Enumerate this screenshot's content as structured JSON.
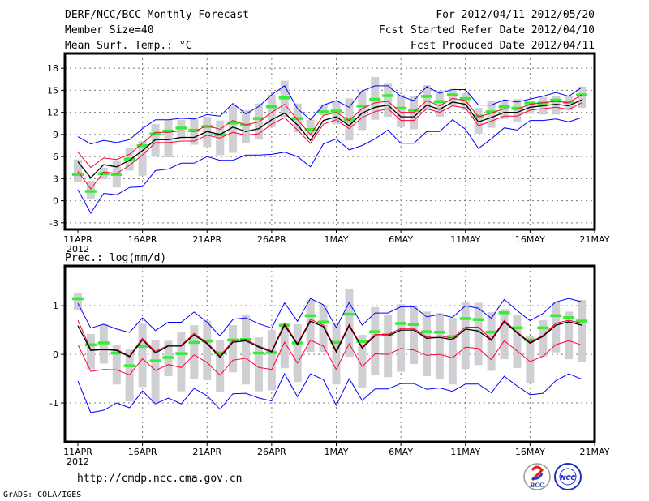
{
  "header": {
    "title": "DERF/NCC/BCC Monthly Forecast",
    "member_size": "Member Size=40",
    "variable": "Mean Surf. Temp.: °C",
    "period": "For 2012/04/11-2012/05/20",
    "started": "Fcst Started Refer Date 2012/04/10",
    "produced": "Fcst Produced Date 2012/04/11"
  },
  "footer": {
    "url": "http://cmdp.ncc.cma.gov.cn",
    "credit": "GrADS: COLA/IGES",
    "logo_bcc": "BCC",
    "logo_ncc": "NCC"
  },
  "colors": {
    "outer": "#0000ff",
    "inner": "#ff0033",
    "mean": "#000000",
    "marker": "#33ee33",
    "range": "#d0d0d4",
    "grid": "#777777"
  },
  "chart_data": [
    {
      "type": "line",
      "title": "Mean Surf. Temp.: °C",
      "xlabel": "",
      "ylabel": "",
      "x_ticks": [
        {
          "day": 0,
          "label": "11APR",
          "sub": "2012"
        },
        {
          "day": 5,
          "label": "16APR"
        },
        {
          "day": 10,
          "label": "21APR"
        },
        {
          "day": 15,
          "label": "26APR"
        },
        {
          "day": 20,
          "label": "1MAY"
        },
        {
          "day": 25,
          "label": "6MAY"
        },
        {
          "day": 30,
          "label": "11MAY"
        },
        {
          "day": 35,
          "label": "16MAY"
        },
        {
          "day": 40,
          "label": "21MAY"
        }
      ],
      "y_ticks": [
        -3,
        0,
        3,
        6,
        9,
        12,
        15,
        18
      ],
      "ylim": [
        -3.9,
        20
      ],
      "xlim": [
        -1,
        40
      ],
      "grid": true,
      "series": [
        {
          "name": "upper-bound",
          "color": "outer",
          "values": [
            8.7,
            7.7,
            8.2,
            7.9,
            8.3,
            9.8,
            11.0,
            11.0,
            11.2,
            11.1,
            11.7,
            11.5,
            13.2,
            11.8,
            12.8,
            14.4,
            15.6,
            12.5,
            11.0,
            13.0,
            13.6,
            12.7,
            14.9,
            15.6,
            15.6,
            14.2,
            13.6,
            15.5,
            14.6,
            15.1,
            15.1,
            13.0,
            13.0,
            13.7,
            13.4,
            13.8,
            14.2,
            14.7,
            14.2,
            15.4
          ]
        },
        {
          "name": "lower-bound",
          "color": "outer",
          "values": [
            1.5,
            -1.7,
            1.0,
            0.8,
            1.8,
            1.9,
            4.1,
            4.3,
            5.1,
            5.1,
            6.0,
            5.5,
            5.5,
            6.2,
            6.2,
            6.3,
            6.6,
            6.0,
            4.6,
            7.7,
            8.4,
            6.9,
            7.5,
            8.4,
            9.6,
            7.8,
            7.8,
            9.4,
            9.4,
            11.0,
            9.7,
            7.1,
            8.4,
            9.9,
            9.6,
            10.9,
            10.9,
            11.1,
            10.7,
            11.3
          ]
        },
        {
          "name": "upper-spread",
          "color": "inner",
          "values": [
            6.6,
            4.5,
            5.8,
            5.6,
            6.3,
            7.8,
            9.3,
            9.3,
            9.5,
            9.4,
            10.2,
            9.7,
            10.9,
            10.3,
            10.7,
            12.0,
            13.1,
            11.0,
            9.0,
            11.6,
            12.0,
            10.9,
            12.5,
            13.3,
            13.5,
            12.0,
            12.0,
            13.6,
            12.9,
            13.9,
            13.6,
            11.4,
            11.9,
            12.5,
            12.4,
            13.1,
            13.3,
            13.5,
            13.3,
            14.4
          ]
        },
        {
          "name": "lower-spread",
          "color": "inner",
          "values": [
            4.0,
            1.6,
            3.9,
            3.7,
            4.8,
            6.2,
            7.9,
            7.9,
            8.1,
            8.1,
            8.9,
            8.5,
            9.3,
            8.9,
            9.1,
            10.4,
            11.3,
            9.6,
            7.8,
            10.4,
            11.0,
            9.8,
            11.3,
            12.1,
            12.5,
            10.9,
            10.9,
            12.5,
            12.0,
            12.9,
            12.6,
            10.2,
            10.8,
            11.5,
            11.5,
            12.3,
            12.5,
            12.7,
            12.4,
            13.3
          ]
        },
        {
          "name": "ensemble-mean",
          "color": "mean",
          "values": [
            5.3,
            3.1,
            4.9,
            4.6,
            5.5,
            6.8,
            8.3,
            8.3,
            8.6,
            8.6,
            9.4,
            9.0,
            10.0,
            9.4,
            9.8,
            11.0,
            11.9,
            10.3,
            8.2,
            10.9,
            11.4,
            10.2,
            11.9,
            12.7,
            13.0,
            11.4,
            11.4,
            13.0,
            12.4,
            13.4,
            13.1,
            10.7,
            11.3,
            12.0,
            12.0,
            12.7,
            12.9,
            13.1,
            12.9,
            13.7
          ]
        }
      ],
      "markers": [
        3.6,
        1.3,
        3.7,
        3.6,
        5.7,
        7.5,
        9.1,
        9.5,
        9.9,
        9.6,
        10.1,
        9.0,
        10.6,
        10.3,
        11.2,
        12.8,
        14.0,
        11.2,
        9.7,
        12.1,
        12.2,
        11.0,
        12.9,
        13.8,
        14.3,
        12.6,
        12.3,
        14.2,
        13.5,
        14.4,
        13.9,
        11.5,
        12.1,
        12.8,
        12.6,
        13.3,
        13.3,
        13.7,
        13.4,
        14.4
      ],
      "ranges": [
        [
          2.5,
          5.6
        ],
        [
          0.3,
          2.7
        ],
        [
          2.9,
          4.5
        ],
        [
          1.8,
          5.5
        ],
        [
          4.1,
          7.2
        ],
        [
          3.4,
          8.1
        ],
        [
          6.0,
          10.4
        ],
        [
          5.9,
          11.0
        ],
        [
          8.3,
          11.0
        ],
        [
          7.6,
          11.3
        ],
        [
          7.3,
          11.4
        ],
        [
          6.2,
          10.9
        ],
        [
          6.5,
          12.9
        ],
        [
          7.8,
          12.3
        ],
        [
          8.3,
          13.2
        ],
        [
          10.0,
          14.4
        ],
        [
          11.4,
          16.3
        ],
        [
          9.3,
          13.2
        ],
        [
          8.8,
          11.0
        ],
        [
          11.6,
          13.1
        ],
        [
          10.4,
          13.6
        ],
        [
          8.2,
          13.9
        ],
        [
          9.6,
          14.9
        ],
        [
          11.0,
          16.8
        ],
        [
          11.4,
          16.0
        ],
        [
          10.0,
          14.4
        ],
        [
          9.7,
          14.2
        ],
        [
          12.3,
          15.7
        ],
        [
          11.4,
          15.0
        ],
        [
          12.9,
          15.2
        ],
        [
          12.3,
          14.6
        ],
        [
          9.1,
          12.6
        ],
        [
          9.9,
          13.5
        ],
        [
          11.1,
          13.5
        ],
        [
          10.7,
          13.8
        ],
        [
          11.8,
          13.4
        ],
        [
          11.7,
          14.1
        ],
        [
          11.7,
          14.2
        ],
        [
          12.3,
          14.2
        ],
        [
          12.6,
          15.5
        ]
      ]
    },
    {
      "type": "line",
      "title": "Prec.: log(mm/d)",
      "xlabel": "",
      "ylabel": "",
      "x_ticks": [
        {
          "day": 0,
          "label": "11APR",
          "sub": "2012"
        },
        {
          "day": 5,
          "label": "16APR"
        },
        {
          "day": 10,
          "label": "21APR"
        },
        {
          "day": 15,
          "label": "26APR"
        },
        {
          "day": 20,
          "label": "1MAY"
        },
        {
          "day": 25,
          "label": "6MAY"
        },
        {
          "day": 30,
          "label": "11MAY"
        },
        {
          "day": 35,
          "label": "16MAY"
        },
        {
          "day": 40,
          "label": "21MAY"
        }
      ],
      "y_ticks": [
        -1,
        0,
        1
      ],
      "ylim": [
        -1.8,
        1.82
      ],
      "xlim": [
        -1,
        40
      ],
      "grid": true,
      "series": [
        {
          "name": "upper-bound",
          "color": "outer",
          "values": [
            1.05,
            0.54,
            0.62,
            0.52,
            0.45,
            0.75,
            0.49,
            0.66,
            0.66,
            0.87,
            0.66,
            0.38,
            0.72,
            0.75,
            0.63,
            0.54,
            1.06,
            0.68,
            1.15,
            1.02,
            0.55,
            1.07,
            0.6,
            0.85,
            0.85,
            0.98,
            0.98,
            0.77,
            0.82,
            0.76,
            1.0,
            0.95,
            0.74,
            1.13,
            0.9,
            0.69,
            0.84,
            1.08,
            1.15,
            1.08
          ]
        },
        {
          "name": "lower-bound",
          "color": "outer",
          "values": [
            -0.55,
            -1.2,
            -1.15,
            -1.0,
            -1.1,
            -0.75,
            -1.02,
            -0.9,
            -1.02,
            -0.7,
            -0.85,
            -1.13,
            -0.81,
            -0.8,
            -0.9,
            -0.96,
            -0.4,
            -0.87,
            -0.4,
            -0.52,
            -1.05,
            -0.5,
            -0.95,
            -0.71,
            -0.71,
            -0.6,
            -0.6,
            -0.72,
            -0.69,
            -0.76,
            -0.61,
            -0.61,
            -0.79,
            -0.45,
            -0.65,
            -0.83,
            -0.8,
            -0.54,
            -0.4,
            -0.51
          ]
        },
        {
          "name": "upper-spread",
          "color": "inner",
          "values": [
            0.7,
            0.1,
            0.09,
            0.1,
            -0.03,
            0.33,
            0.06,
            0.19,
            0.19,
            0.43,
            0.24,
            -0.03,
            0.28,
            0.31,
            0.17,
            0.07,
            0.64,
            0.22,
            0.72,
            0.6,
            0.08,
            0.62,
            0.15,
            0.41,
            0.41,
            0.53,
            0.53,
            0.36,
            0.38,
            0.33,
            0.56,
            0.56,
            0.31,
            0.7,
            0.46,
            0.25,
            0.39,
            0.64,
            0.7,
            0.64
          ]
        },
        {
          "name": "lower-spread",
          "color": "inner",
          "values": [
            0.2,
            -0.35,
            -0.31,
            -0.32,
            -0.42,
            -0.09,
            -0.33,
            -0.21,
            -0.27,
            -0.01,
            -0.17,
            -0.43,
            -0.12,
            -0.08,
            -0.27,
            -0.31,
            0.25,
            -0.18,
            0.29,
            0.17,
            -0.31,
            0.22,
            -0.25,
            0.01,
            0.0,
            0.12,
            0.09,
            -0.02,
            0.0,
            -0.07,
            0.15,
            0.12,
            -0.11,
            0.28,
            0.07,
            -0.15,
            -0.04,
            0.2,
            0.28,
            0.19
          ]
        },
        {
          "name": "ensemble-mean",
          "color": "mean",
          "values": [
            0.59,
            0.08,
            0.1,
            0.08,
            -0.05,
            0.3,
            0.03,
            0.17,
            0.17,
            0.4,
            0.22,
            -0.06,
            0.25,
            0.28,
            0.15,
            0.05,
            0.6,
            0.2,
            0.68,
            0.57,
            0.05,
            0.59,
            0.13,
            0.38,
            0.38,
            0.5,
            0.5,
            0.33,
            0.35,
            0.3,
            0.52,
            0.48,
            0.29,
            0.67,
            0.44,
            0.23,
            0.37,
            0.6,
            0.67,
            0.6
          ]
        }
      ],
      "markers": [
        1.15,
        0.2,
        0.24,
        0.03,
        -0.23,
        0.17,
        -0.13,
        -0.06,
        0.02,
        0.25,
        0.28,
        0.03,
        0.3,
        0.31,
        0.03,
        0.04,
        0.6,
        0.24,
        0.8,
        0.67,
        0.25,
        0.83,
        0.27,
        0.47,
        0.41,
        0.64,
        0.62,
        0.47,
        0.46,
        0.37,
        0.74,
        0.72,
        0.46,
        0.86,
        0.55,
        0.3,
        0.55,
        0.8,
        0.76,
        0.69
      ],
      "ranges": [
        [
          0.92,
          1.27
        ],
        [
          -0.3,
          0.42
        ],
        [
          -0.19,
          0.62
        ],
        [
          -0.62,
          0.2
        ],
        [
          -0.97,
          0.1
        ],
        [
          -0.67,
          0.63
        ],
        [
          -1.0,
          0.3
        ],
        [
          -0.45,
          0.28
        ],
        [
          -0.76,
          0.45
        ],
        [
          -0.5,
          0.6
        ],
        [
          -0.53,
          0.69
        ],
        [
          -0.77,
          0.3
        ],
        [
          -0.37,
          0.6
        ],
        [
          -0.62,
          0.81
        ],
        [
          -0.76,
          0.35
        ],
        [
          -0.74,
          0.5
        ],
        [
          -0.28,
          0.65
        ],
        [
          -0.57,
          0.62
        ],
        [
          0.05,
          1.12
        ],
        [
          0.05,
          1.02
        ],
        [
          -0.62,
          0.65
        ],
        [
          -0.05,
          1.35
        ],
        [
          -0.68,
          0.4
        ],
        [
          -0.42,
          0.97
        ],
        [
          -0.47,
          0.82
        ],
        [
          -0.36,
          1.03
        ],
        [
          -0.2,
          1.0
        ],
        [
          -0.45,
          0.88
        ],
        [
          -0.5,
          0.85
        ],
        [
          -0.62,
          0.75
        ],
        [
          -0.3,
          1.08
        ],
        [
          -0.22,
          1.06
        ],
        [
          -0.34,
          0.87
        ],
        [
          -0.1,
          0.93
        ],
        [
          -0.28,
          0.8
        ],
        [
          -0.6,
          0.38
        ],
        [
          -0.05,
          0.7
        ],
        [
          0.04,
          1.08
        ],
        [
          -0.1,
          0.88
        ],
        [
          -0.16,
          1.12
        ]
      ]
    }
  ]
}
